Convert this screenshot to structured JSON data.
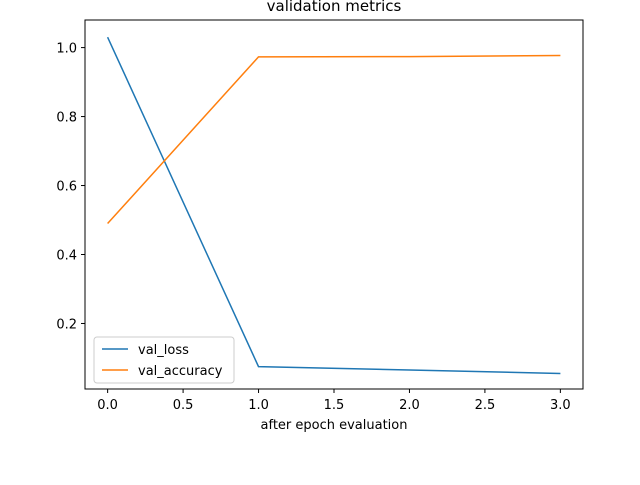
{
  "chart_data": {
    "type": "line",
    "title": "validation metrics",
    "xlabel": "after epoch evaluation",
    "ylabel": "",
    "x": [
      0,
      1,
      2,
      3
    ],
    "xlim": [
      -0.15,
      3.15
    ],
    "ylim": [
      0.01,
      1.08
    ],
    "xticks": [
      0.0,
      0.5,
      1.0,
      1.5,
      2.0,
      2.5,
      3.0
    ],
    "xtick_labels": [
      "0.0",
      "0.5",
      "1.0",
      "1.5",
      "2.0",
      "2.5",
      "3.0"
    ],
    "yticks": [
      0.2,
      0.4,
      0.6,
      0.8,
      1.0
    ],
    "ytick_labels": [
      "0.2",
      "0.4",
      "0.6",
      "0.8",
      "1.0"
    ],
    "grid": false,
    "legend_position": "lower-left",
    "series": [
      {
        "name": "val_loss",
        "color": "#1f77b4",
        "values": [
          1.03,
          0.075,
          0.065,
          0.055
        ]
      },
      {
        "name": "val_accuracy",
        "color": "#ff7f0e",
        "values": [
          0.49,
          0.973,
          0.974,
          0.977
        ]
      }
    ]
  }
}
